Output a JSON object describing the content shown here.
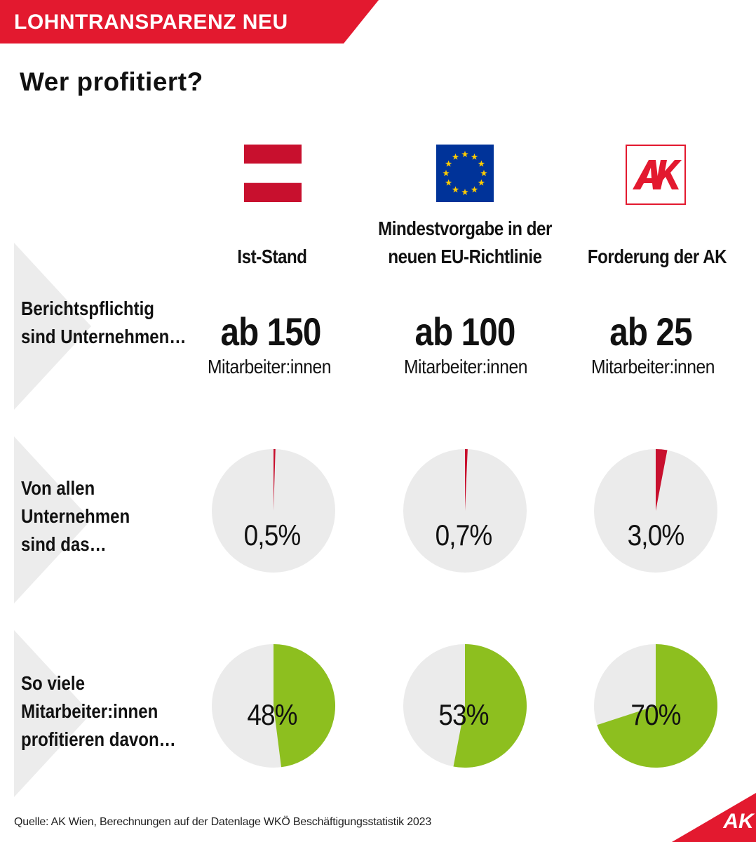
{
  "banner": {
    "text": "LOHNTRANSPARENZ NEU"
  },
  "headline": "Wer profitiert?",
  "columns": [
    {
      "logo": "austria-flag-icon",
      "heading": [
        "",
        "Ist-Stand"
      ],
      "threshold": "ab 150",
      "unit": "Mitarbeiter:innen"
    },
    {
      "logo": "eu-flag-icon",
      "heading": [
        "Mindestvorgabe in der",
        "neuen EU-Richtlinie"
      ],
      "threshold": "ab 100",
      "unit": "Mitarbeiter:innen"
    },
    {
      "logo": "ak-logo-icon",
      "heading": [
        "",
        "Forderung der AK"
      ],
      "threshold": "ab 25",
      "unit": "Mitarbeiter:innen"
    }
  ],
  "rows": [
    {
      "label": [
        "Berichtspflichtig",
        "sind Unternehmen…"
      ]
    },
    {
      "label": [
        "Von allen",
        "Unternehmen",
        "sind das…"
      ]
    },
    {
      "label": [
        "So viele",
        "Mitarbeiter:innen",
        "profitieren davon…"
      ]
    }
  ],
  "chart_data": [
    {
      "type": "pie",
      "title": "Von allen Unternehmen sind das…",
      "categories": [
        "Ist-Stand",
        "Mindestvorgabe in der neuen EU-Richtlinie",
        "Forderung der AK"
      ],
      "values": [
        0.5,
        0.7,
        3.0
      ],
      "labels": [
        "0,5%",
        "0,7%",
        "3,0%"
      ],
      "unit": "%"
    },
    {
      "type": "pie",
      "title": "So viele Mitarbeiter:innen profitieren davon…",
      "categories": [
        "Ist-Stand",
        "Mindestvorgabe in der neuen EU-Richtlinie",
        "Forderung der AK"
      ],
      "values": [
        48,
        53,
        70
      ],
      "labels": [
        "48%",
        "53%",
        "70%"
      ],
      "unit": "%"
    }
  ],
  "colors": {
    "brand_red": "#e3192f",
    "flag_red": "#c8102e",
    "eu_blue": "#003399",
    "eu_star": "#ffcc00",
    "pie_bg": "#ebebeb",
    "chevron": "#ececec",
    "green": "#8dbf1f",
    "pie_red": "#c8102e"
  },
  "footer": {
    "source": "Quelle: AK Wien, Berechnungen auf der Datenlage WKÖ Beschäftigungsstatistik 2023",
    "corner_logo": "AK"
  }
}
